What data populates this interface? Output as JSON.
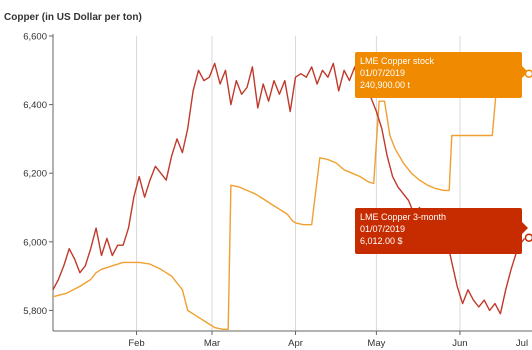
{
  "chart_data": {
    "type": "line",
    "title": "Copper (in US Dollar per ton)",
    "ylim": [
      5740,
      6600
    ],
    "yticks": [
      5800,
      6000,
      6200,
      6400,
      6600
    ],
    "ytick_labels": [
      "5,800",
      "6,000",
      "6,200",
      "6,400",
      "6,600"
    ],
    "xlim": [
      0,
      177
    ],
    "month_ticks": [
      {
        "label": "Feb",
        "x": 31
      },
      {
        "label": "Mar",
        "x": 59
      },
      {
        "label": "Apr",
        "x": 90
      },
      {
        "label": "May",
        "x": 120
      },
      {
        "label": "Jun",
        "x": 151
      },
      {
        "label": "Jul",
        "x": 181
      }
    ],
    "grid": "vertical",
    "series": [
      {
        "name": "LME Copper stock",
        "color": "#f0a030",
        "x": [
          0,
          5,
          10,
          14,
          16,
          18,
          22,
          26,
          28,
          32,
          36,
          40,
          44,
          46,
          48,
          50,
          54,
          58,
          60,
          63,
          65,
          66,
          69,
          72,
          75,
          78,
          81,
          84,
          87,
          89,
          90,
          93,
          96,
          99,
          102,
          105,
          108,
          111,
          114,
          117,
          119,
          121,
          123,
          125,
          127,
          130,
          133,
          136,
          139,
          142,
          145,
          147,
          148,
          151,
          154,
          157,
          160,
          163,
          165,
          166,
          170,
          175
        ],
        "values": [
          5840,
          5850,
          5870,
          5890,
          5910,
          5920,
          5930,
          5940,
          5940,
          5940,
          5935,
          5920,
          5900,
          5880,
          5860,
          5800,
          5780,
          5760,
          5750,
          5745,
          5745,
          6165,
          6160,
          6150,
          6140,
          6125,
          6110,
          6095,
          6080,
          6060,
          6055,
          6050,
          6050,
          6245,
          6240,
          6230,
          6210,
          6200,
          6190,
          6175,
          6170,
          6410,
          6410,
          6310,
          6270,
          6230,
          6200,
          6180,
          6165,
          6155,
          6150,
          6150,
          6310,
          6310,
          6310,
          6310,
          6310,
          6310,
          6490,
          6490,
          6490,
          6490
        ]
      },
      {
        "name": "LME Copper 3-month",
        "color": "#c0392b",
        "x": [
          0,
          2,
          4,
          6,
          8,
          10,
          12,
          14,
          16,
          18,
          20,
          22,
          24,
          26,
          28,
          30,
          32,
          34,
          36,
          38,
          40,
          42,
          44,
          46,
          48,
          50,
          52,
          54,
          56,
          58,
          60,
          62,
          64,
          66,
          68,
          70,
          72,
          74,
          76,
          78,
          80,
          82,
          84,
          86,
          88,
          90,
          92,
          94,
          96,
          98,
          100,
          102,
          104,
          106,
          108,
          110,
          112,
          114,
          116,
          118,
          120,
          122,
          124,
          126,
          128,
          130,
          132,
          134,
          136,
          138,
          140,
          142,
          144,
          146,
          148,
          150,
          152,
          154,
          156,
          158,
          160,
          162,
          164,
          166,
          168,
          170,
          172,
          174,
          175
        ],
        "values": [
          5860,
          5890,
          5930,
          5980,
          5950,
          5910,
          5930,
          5980,
          6040,
          5960,
          6010,
          5960,
          5990,
          5990,
          6040,
          6130,
          6190,
          6130,
          6180,
          6220,
          6200,
          6180,
          6250,
          6300,
          6260,
          6330,
          6440,
          6500,
          6470,
          6480,
          6520,
          6460,
          6500,
          6400,
          6470,
          6430,
          6450,
          6510,
          6390,
          6460,
          6410,
          6470,
          6430,
          6470,
          6380,
          6480,
          6490,
          6480,
          6510,
          6460,
          6500,
          6480,
          6520,
          6440,
          6500,
          6470,
          6510,
          6440,
          6430,
          6420,
          6380,
          6330,
          6250,
          6190,
          6160,
          6140,
          6120,
          6080,
          6100,
          6060,
          6020,
          6040,
          6000,
          6010,
          5940,
          5870,
          5820,
          5860,
          5830,
          5810,
          5830,
          5800,
          5820,
          5790,
          5860,
          5920,
          5970,
          6000,
          6010
        ]
      }
    ],
    "tooltips": [
      {
        "series": "LME Copper stock",
        "date": "01/07/2019",
        "value": "240,900.00 t",
        "color": "#f08a00",
        "anchor_value": 6490
      },
      {
        "series": "LME Copper 3-month",
        "date": "01/07/2019",
        "value": "6,012.00 $",
        "color": "#c72c00",
        "anchor_value": 6012
      }
    ]
  }
}
